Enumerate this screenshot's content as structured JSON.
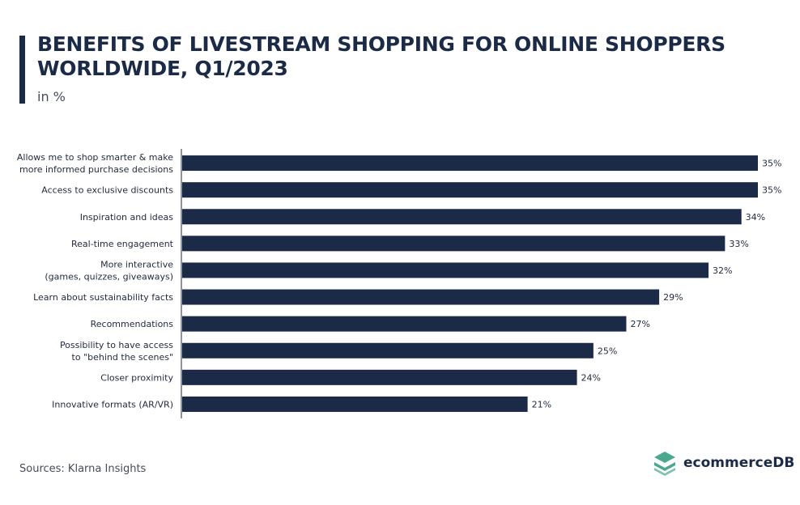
{
  "header": {
    "title": "BENEFITS OF LIVESTREAM SHOPPING FOR ONLINE SHOPPERS WORLDWIDE, Q1/2023",
    "subtitle": "in %"
  },
  "footer": {
    "source": "Sources:  Klarna  Insights",
    "brand": "ecommerceDB"
  },
  "colors": {
    "bar": "#1b2a47",
    "logo": "#4aa88f"
  },
  "icons": {
    "logo": "ecommercedb-logo-icon"
  },
  "chart_data": {
    "type": "bar",
    "orientation": "horizontal",
    "title": "BENEFITS OF LIVESTREAM SHOPPING FOR ONLINE SHOPPERS WORLDWIDE, Q1/2023",
    "subtitle": "in %",
    "categories": [
      [
        "Allows me to shop smarter & make",
        "more  informed purchase decisions"
      ],
      [
        "Access to exclusive discounts"
      ],
      [
        "Inspiration and ideas"
      ],
      [
        "Real-time engagement"
      ],
      [
        "More  interactive",
        "(games,  quizzes,  giveaways)"
      ],
      [
        "Learn about sustainability facts"
      ],
      [
        "Recommendations"
      ],
      [
        "Possibility to have access",
        "to \"behind the  scenes\""
      ],
      [
        "Closer proximity"
      ],
      [
        "Innovative formats (AR/VR)"
      ]
    ],
    "values": [
      35,
      35,
      34,
      33,
      32,
      29,
      27,
      25,
      24,
      21
    ],
    "value_labels": [
      "35%",
      "35%",
      "34%",
      "33%",
      "32%",
      "29%",
      "27%",
      "25%",
      "24%",
      "21%"
    ],
    "xlim": [
      0,
      35
    ],
    "grid": false,
    "legend": "none"
  }
}
